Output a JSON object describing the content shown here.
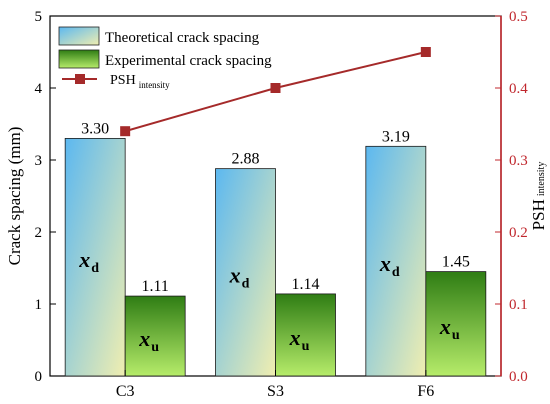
{
  "chart_data": {
    "type": "bar",
    "categories": [
      "C3",
      "S3",
      "F6"
    ],
    "series": [
      {
        "name": "Theoretical crack spacing",
        "values": [
          3.3,
          2.88,
          3.19
        ],
        "labels": [
          "3.30",
          "2.88",
          "3.19"
        ],
        "annotation_main": "x",
        "annotation_sub": "d"
      },
      {
        "name": "Experimental crack spacing",
        "values": [
          1.11,
          1.14,
          1.45
        ],
        "labels": [
          "1.11",
          "1.14",
          "1.45"
        ],
        "annotation_main": "x",
        "annotation_sub": "u"
      }
    ],
    "line_series": {
      "name_main": "PSH",
      "name_sub": "intensity",
      "values": [
        0.34,
        0.4,
        0.45
      ],
      "color": "#a52a2a"
    },
    "ylabel": "Crack spacing (mm)",
    "ylim": [
      0,
      5
    ],
    "yticks": [
      "0",
      "1",
      "2",
      "3",
      "4",
      "5"
    ],
    "y2label_main": "PSH",
    "y2label_sub": "intensity",
    "y2lim": [
      0,
      0.5
    ],
    "y2ticks": [
      "0.0",
      "0.1",
      "0.2",
      "0.3",
      "0.4",
      "0.5"
    ],
    "legend_position": "top-left",
    "grid": false,
    "colors": {
      "right_axis": "#c0272d",
      "theoretical_top": "#5cb8f0",
      "theoretical_bottom": "#f0eeb0",
      "experimental_top": "#2f7d14",
      "experimental_bottom": "#b6ec6a"
    }
  }
}
